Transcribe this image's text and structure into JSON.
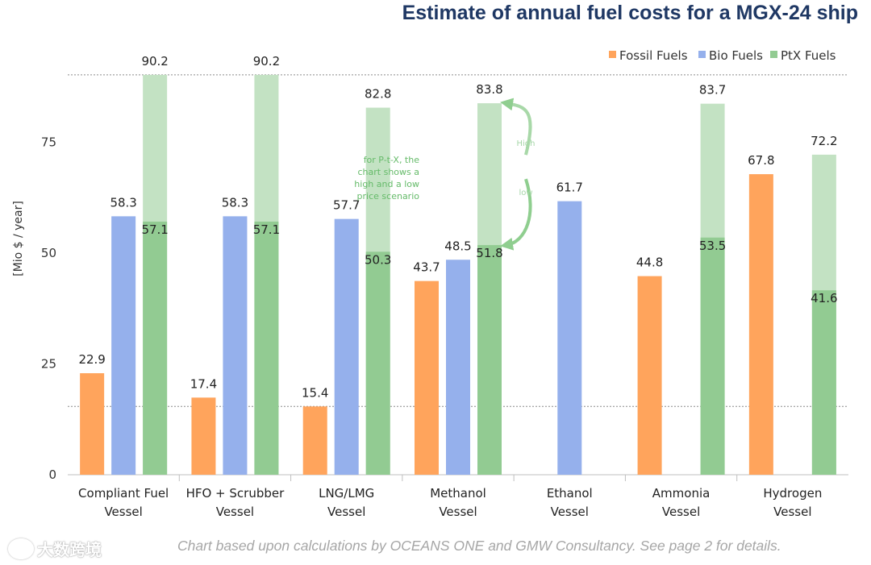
{
  "chart_data": {
    "type": "bar",
    "title": "Estimate of annual fuel costs for a MGX-24 ship",
    "ylabel": "[Mio $ / year]",
    "ylim": [
      0,
      95
    ],
    "yticks": [
      0,
      25,
      50,
      75
    ],
    "reference_lines": [
      90.2,
      15.4
    ],
    "legend": [
      "Fossil Fuels",
      "Bio Fuels",
      "PtX Fuels"
    ],
    "legend_position": "top-right",
    "categories": [
      "Compliant Fuel\nVessel",
      "HFO + Scrubber\nVessel",
      "LNG/LMG\nVessel",
      "Methanol\nVessel",
      "Ethanol\nVessel",
      "Ammonia\nVessel",
      "Hydrogen\nVessel"
    ],
    "series": [
      {
        "name": "Fossil Fuels",
        "color": "#ffa45c",
        "values": [
          22.9,
          17.4,
          15.4,
          43.7,
          null,
          44.8,
          67.8
        ]
      },
      {
        "name": "Bio Fuels",
        "color": "#95b0ec",
        "values": [
          58.3,
          58.3,
          57.7,
          48.5,
          61.7,
          null,
          null
        ]
      },
      {
        "name": "PtX Fuels (low)",
        "color": "#92cb92",
        "values": [
          57.1,
          57.1,
          50.3,
          51.8,
          null,
          53.5,
          41.6
        ]
      },
      {
        "name": "PtX Fuels (high)",
        "color": "#c3e2c3",
        "values": [
          90.2,
          90.2,
          82.8,
          83.8,
          null,
          83.7,
          72.2
        ]
      }
    ],
    "annotations": {
      "note": [
        "for P-t-X, the",
        "chart shows a",
        "high and a low",
        "price scenario"
      ],
      "high_label": "High",
      "low_label": "low"
    }
  },
  "footnote": "Chart based upon calculations by OCEANS ONE and GMW Consultancy. See page 2 for details.",
  "watermark": "大数跨境"
}
